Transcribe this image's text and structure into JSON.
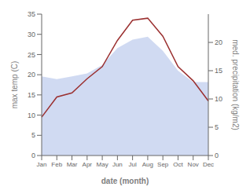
{
  "chart_data": {
    "type": "line",
    "categories": [
      "Jan",
      "Feb",
      "Mar",
      "Apr",
      "May",
      "Jun",
      "Jul",
      "Aug",
      "Sep",
      "Oct",
      "Nov",
      "Dec"
    ],
    "xlabel": "date (month)",
    "ylabel": "max temp (C)",
    "y2label": "med. precipitation (kg/m2)",
    "ylim": [
      0,
      35
    ],
    "yticks": [
      0,
      5,
      10,
      15,
      20,
      25,
      30,
      35
    ],
    "y2lim": [
      0,
      25
    ],
    "y2ticks": [
      0,
      5,
      10,
      15,
      20
    ],
    "grid": false,
    "series": [
      {
        "type": "area",
        "color": "#c8d4f0",
        "axis": "y2",
        "values": [
          14.0,
          13.5,
          14.0,
          14.5,
          16.0,
          19.0,
          20.5,
          21.0,
          18.5,
          15.0,
          13.0,
          13.0
        ]
      },
      {
        "type": "line",
        "color": "#9b3030",
        "values": [
          9.5,
          14.5,
          15.5,
          19.0,
          22.0,
          28.5,
          33.5,
          34.0,
          29.5,
          22.0,
          18.5,
          13.5
        ]
      }
    ]
  }
}
